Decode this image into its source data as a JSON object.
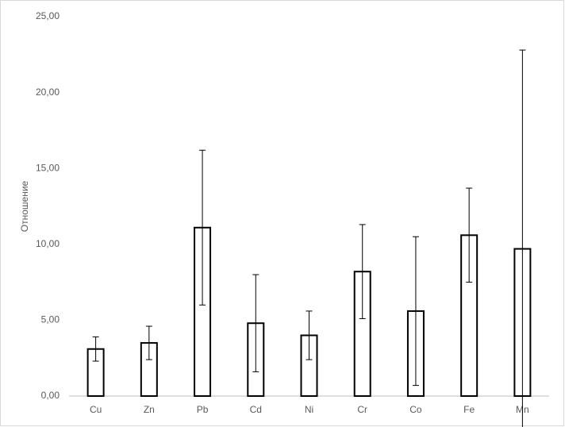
{
  "chart_data": {
    "type": "bar",
    "y_label": "Отношение",
    "categories": [
      "Cu",
      "Zn",
      "Pb",
      "Cd",
      "Ni",
      "Cr",
      "Co",
      "Fe",
      "Mn"
    ],
    "values": [
      3.1,
      3.5,
      11.1,
      4.8,
      4.0,
      8.2,
      5.6,
      10.6,
      9.7
    ],
    "errors": [
      0.8,
      1.1,
      5.1,
      3.2,
      1.6,
      3.1,
      4.9,
      3.1,
      13.1
    ],
    "color": "#ffffff",
    "edge_color": "#000000",
    "ylim": [
      0,
      25
    ],
    "yticks": [
      {
        "value": 0,
        "label": "0,00"
      },
      {
        "value": 5,
        "label": "5,00"
      },
      {
        "value": 10,
        "label": "10,00"
      },
      {
        "value": 15,
        "label": "15,00"
      },
      {
        "value": 20,
        "label": "20,00"
      },
      {
        "value": 25,
        "label": "25,00"
      }
    ],
    "grid": false
  }
}
